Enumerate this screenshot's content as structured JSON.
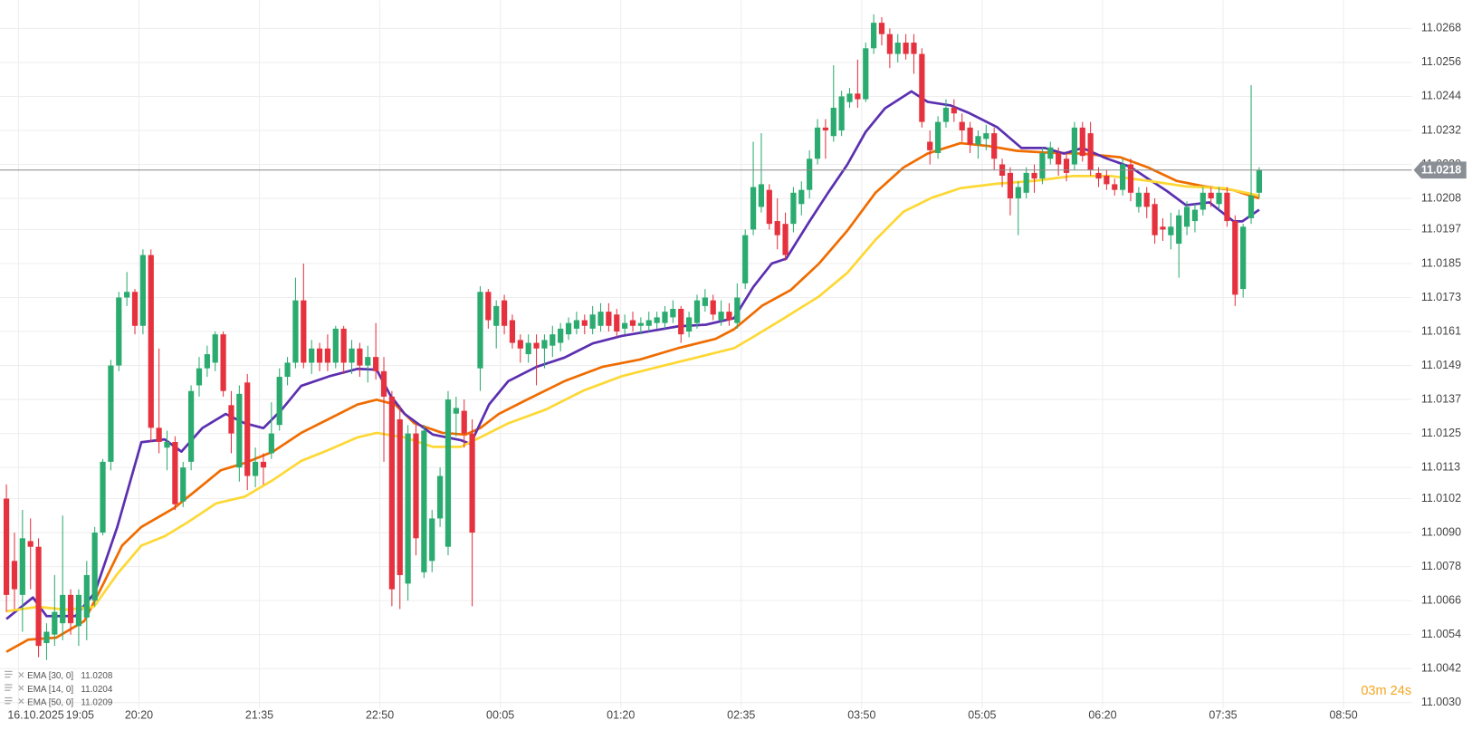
{
  "chart_data": {
    "type": "candlestick",
    "date_label": "16.10.2025",
    "up_color": "#2bab6f",
    "down_color": "#e5323e",
    "grid": true,
    "xlim": [
      -0.8,
      175
    ],
    "xticks": [
      {
        "value": 1.5,
        "label": "19:05"
      },
      {
        "value": 16.5,
        "label": "20:20"
      },
      {
        "value": 31.5,
        "label": "21:35"
      },
      {
        "value": 46.5,
        "label": "22:50"
      },
      {
        "value": 61.5,
        "label": "00:05"
      },
      {
        "value": 76.5,
        "label": "01:20"
      },
      {
        "value": 91.5,
        "label": "02:35"
      },
      {
        "value": 106.5,
        "label": "03:50"
      },
      {
        "value": 121.5,
        "label": "05:05"
      },
      {
        "value": 136.5,
        "label": "06:20"
      },
      {
        "value": 151.5,
        "label": "07:35"
      },
      {
        "value": 166.5,
        "label": "08:50"
      }
    ],
    "ylim": [
      11.0028,
      11.0278
    ],
    "yticks": [
      11.0268,
      11.0256,
      11.0244,
      11.0232,
      {
        "value": 11.022,
        "label": "11.0220"
      },
      11.0208,
      11.0197,
      11.0185,
      11.0173,
      11.0161,
      11.0149,
      11.0137,
      11.0125,
      11.0113,
      11.0102,
      {
        "value": 11.009,
        "label": "11.0090"
      },
      11.0078,
      11.0066,
      11.0054,
      11.0042,
      {
        "value": 11.003,
        "label": "11.0030"
      }
    ],
    "open": [
      11.0102,
      11.008,
      11.0068,
      11.0087,
      11.0085,
      11.0051,
      11.0054,
      11.0058,
      11.0068,
      11.0057,
      11.006,
      11.0066,
      11.009,
      11.0115,
      11.0149,
      11.0173,
      11.0175,
      11.0163,
      11.0188,
      11.0127,
      11.012,
      11.0122,
      11.0101,
      11.0115,
      11.0142,
      11.0148,
      11.015,
      11.016,
      11.0135,
      11.0113,
      11.0143,
      11.011,
      11.0115,
      11.0118,
      11.0128,
      11.0145,
      11.015,
      11.0172,
      11.015,
      11.0155,
      11.0155,
      11.015,
      11.0162,
      11.015,
      11.0155,
      11.0149,
      11.0152,
      11.0147,
      11.0138,
      11.013,
      11.0072,
      11.0125,
      11.0076,
      11.008,
      11.0095,
      11.0085,
      11.0132,
      11.0133,
      11.0125,
      11.0148,
      11.0175,
      11.0163,
      11.0172,
      11.0165,
      11.0158,
      11.0153,
      11.0157,
      11.0155,
      11.0156,
      11.0157,
      11.016,
      11.0162,
      11.0165,
      11.0162,
      11.0163,
      11.0168,
      11.0167,
      11.0162,
      11.0165,
      11.0163,
      11.0163,
      11.0164,
      11.0164,
      11.0166,
      11.0169,
      11.0161,
      11.0164,
      11.017,
      11.0172,
      11.0165,
      11.0168,
      11.0164,
      11.0178,
      11.0197,
      11.0205,
      11.0211,
      11.02,
      11.0199,
      11.0199,
      11.0206,
      11.0211,
      11.0222,
      11.0233,
      11.023,
      11.0232,
      11.0242,
      11.0245,
      11.0243,
      11.0261,
      11.027,
      11.0266,
      11.0259,
      11.0263,
      11.0263,
      11.0259,
      11.0228,
      11.0224,
      11.0235,
      11.024,
      11.0235,
      11.0233,
      11.0227,
      11.0229,
      11.0231,
      11.022,
      11.0217,
      11.0208,
      11.021,
      11.0217,
      11.0215,
      11.0222,
      11.0224,
      11.0222,
      11.022,
      11.0233,
      11.0231,
      11.0217,
      11.0216,
      11.0213,
      11.0211,
      11.022,
      11.0205,
      11.021,
      11.0206,
      11.0198,
      11.0195,
      11.0192,
      11.0198,
      11.02,
      11.0204,
      11.021,
      11.0206,
      11.021,
      11.02,
      11.0176,
      11.0201,
      11.021
    ],
    "high": [
      11.0107,
      11.009,
      11.0098,
      11.0095,
      11.0088,
      11.0058,
      11.0075,
      11.0096,
      11.007,
      11.007,
      11.008,
      11.0092,
      11.0116,
      11.0151,
      11.0175,
      11.0182,
      11.0176,
      11.019,
      11.019,
      11.0155,
      11.0126,
      11.0124,
      11.0115,
      11.0142,
      11.0152,
      11.0156,
      11.0161,
      11.0161,
      11.014,
      11.0142,
      11.0146,
      11.012,
      11.0118,
      11.0136,
      11.0148,
      11.0152,
      11.018,
      11.0185,
      11.0158,
      11.0157,
      11.016,
      11.0163,
      11.0163,
      11.0158,
      11.0157,
      11.0156,
      11.0164,
      11.0152,
      11.014,
      11.0135,
      11.0128,
      11.0128,
      11.0128,
      11.0098,
      11.0113,
      11.014,
      11.0138,
      11.0137,
      11.013,
      11.0177,
      11.0176,
      11.0172,
      11.0174,
      11.0167,
      11.016,
      11.016,
      11.016,
      11.016,
      11.0163,
      11.0164,
      11.0166,
      11.0168,
      11.0167,
      11.017,
      11.0171,
      11.0171,
      11.0169,
      11.0167,
      11.0168,
      11.0166,
      11.0168,
      11.0168,
      11.017,
      11.0172,
      11.017,
      11.0168,
      11.0174,
      11.0176,
      11.0174,
      11.0172,
      11.0171,
      11.0178,
      11.0197,
      11.0228,
      11.0231,
      11.0213,
      11.0208,
      11.0203,
      11.0212,
      11.0214,
      11.0225,
      11.0236,
      11.0236,
      11.0255,
      11.0246,
      11.0247,
      11.0257,
      11.0263,
      11.0273,
      11.0272,
      11.0268,
      11.0266,
      11.0266,
      11.0266,
      11.0261,
      11.0232,
      11.0237,
      11.0243,
      11.0243,
      11.0238,
      11.0235,
      11.0232,
      11.0234,
      11.0233,
      11.0222,
      11.0219,
      11.0214,
      11.0219,
      11.022,
      11.0226,
      11.0228,
      11.0226,
      11.0224,
      11.0235,
      11.0235,
      11.0235,
      11.0219,
      11.0218,
      11.0215,
      11.0222,
      11.0222,
      11.0212,
      11.0212,
      11.0208,
      11.0201,
      11.0203,
      11.0204,
      11.0207,
      11.0206,
      11.0212,
      11.0212,
      11.0212,
      11.0212,
      11.0202,
      11.0199,
      11.0248,
      11.0219
    ],
    "low": [
      11.0062,
      11.0063,
      11.0055,
      11.007,
      11.0046,
      11.0045,
      11.005,
      11.0052,
      11.0054,
      11.005,
      11.0052,
      11.0064,
      11.0089,
      11.0112,
      11.0147,
      11.017,
      11.016,
      11.016,
      11.0122,
      11.0118,
      11.0112,
      11.0098,
      11.0099,
      11.0112,
      11.0138,
      11.0145,
      11.0147,
      11.0138,
      11.0118,
      11.0108,
      11.0105,
      11.0106,
      11.0107,
      11.0116,
      11.0126,
      11.0142,
      11.0148,
      11.0148,
      11.0146,
      11.0147,
      11.0147,
      11.0148,
      11.0146,
      11.0146,
      11.0145,
      11.0143,
      11.0144,
      11.0115,
      11.0064,
      11.0063,
      11.0066,
      11.0082,
      11.0074,
      11.0076,
      11.0092,
      11.0082,
      11.0124,
      11.012,
      11.0064,
      11.014,
      11.0162,
      11.0155,
      11.016,
      11.0155,
      11.015,
      11.015,
      11.0142,
      11.0148,
      11.0152,
      11.0154,
      11.0158,
      11.016,
      11.016,
      11.016,
      11.0161,
      11.0161,
      11.0159,
      11.016,
      11.0161,
      11.016,
      11.0161,
      11.0162,
      11.0162,
      11.0164,
      11.0157,
      11.0159,
      11.0162,
      11.0168,
      11.0165,
      11.0163,
      11.0163,
      11.0162,
      11.0176,
      11.0195,
      11.0203,
      11.0197,
      11.019,
      11.0186,
      11.0196,
      11.0202,
      11.0208,
      11.022,
      11.0222,
      11.0228,
      11.023,
      11.024,
      11.024,
      11.0242,
      11.0259,
      11.0262,
      11.0254,
      11.0256,
      11.0257,
      11.0252,
      11.0233,
      11.022,
      11.0222,
      11.0233,
      11.0235,
      11.0228,
      11.0224,
      11.0222,
      11.0225,
      11.0218,
      11.0212,
      11.0202,
      11.0195,
      11.0208,
      11.021,
      11.0213,
      11.022,
      11.0216,
      11.0214,
      11.0218,
      11.0221,
      11.0216,
      11.0212,
      11.0211,
      11.0209,
      11.0209,
      11.0207,
      11.0203,
      11.0201,
      11.0192,
      11.0193,
      11.019,
      11.018,
      11.0195,
      11.0196,
      11.0202,
      11.0205,
      11.0204,
      11.0198,
      11.017,
      11.0173,
      11.0199,
      11.0208
    ],
    "close": [
      11.0068,
      11.007,
      11.0088,
      11.0085,
      11.005,
      11.0055,
      11.0062,
      11.0068,
      11.0058,
      11.0068,
      11.0075,
      11.009,
      11.0115,
      11.0149,
      11.0173,
      11.0175,
      11.0163,
      11.0188,
      11.0127,
      11.0122,
      11.0122,
      11.01,
      11.0113,
      11.014,
      11.0148,
      11.0153,
      11.016,
      11.014,
      11.0125,
      11.0139,
      11.011,
      11.0115,
      11.0113,
      11.0125,
      11.0145,
      11.015,
      11.0172,
      11.015,
      11.0155,
      11.015,
      11.015,
      11.0162,
      11.015,
      11.0155,
      11.0149,
      11.0152,
      11.0147,
      11.0138,
      11.007,
      11.0075,
      11.0125,
      11.0088,
      11.0126,
      11.0095,
      11.011,
      11.0137,
      11.0134,
      11.0125,
      11.009,
      11.0175,
      11.0165,
      11.017,
      11.0163,
      11.0157,
      11.0155,
      11.0157,
      11.0155,
      11.0158,
      11.016,
      11.0162,
      11.0164,
      11.0165,
      11.0163,
      11.0167,
      11.0168,
      11.0163,
      11.0161,
      11.0164,
      11.0163,
      11.0164,
      11.0165,
      11.0166,
      11.0168,
      11.0169,
      11.016,
      11.0166,
      11.0172,
      11.0173,
      11.0167,
      11.0168,
      11.0165,
      11.0173,
      11.0195,
      11.0212,
      11.0213,
      11.0199,
      11.0195,
      11.0188,
      11.021,
      11.0211,
      11.0222,
      11.0233,
      11.0232,
      11.024,
      11.0244,
      11.0245,
      11.0243,
      11.0261,
      11.027,
      11.0266,
      11.0259,
      11.0263,
      11.0259,
      11.0259,
      11.0235,
      11.0225,
      11.0235,
      11.024,
      11.0238,
      11.0232,
      11.0227,
      11.023,
      11.0231,
      11.0222,
      11.0216,
      11.0208,
      11.0212,
      11.0217,
      11.0215,
      11.0224,
      11.0226,
      11.022,
      11.0217,
      11.0233,
      11.0223,
      11.0218,
      11.0215,
      11.0213,
      11.0211,
      11.022,
      11.021,
      11.021,
      11.0205,
      11.0195,
      11.0197,
      11.0198,
      11.0202,
      11.0205,
      11.0204,
      11.021,
      11.0208,
      11.021,
      11.02,
      11.0174,
      11.0198,
      11.0209,
      11.0218
    ],
    "series": [
      {
        "name": "EMA [30, 0]",
        "color": "#ef6c00",
        "legend_value": 11.0208,
        "x": [
          0,
          2.7,
          6.2,
          9.7,
          12.1,
          14.4,
          16.8,
          20.9,
          23.8,
          26.7,
          29.7,
          33.2,
          36.7,
          40.2,
          43.7,
          46.1,
          48.4,
          50.8,
          54.3,
          57.2,
          59,
          61.3,
          64.8,
          69.5,
          74.2,
          78.9,
          83.6,
          88.3,
          90.6,
          94.1,
          97.7,
          101.2,
          104.7,
          108.2,
          111.7,
          114.7,
          118.8,
          122.3,
          125.8,
          129.3,
          134,
          138.7,
          142.2,
          145.7,
          149.2,
          152.8,
          156
        ],
        "values": [
          11.00479,
          11.00522,
          11.00529,
          11.00588,
          11.00721,
          11.00854,
          11.0092,
          11.00987,
          11.01053,
          11.0112,
          11.01146,
          11.01186,
          11.01252,
          11.01302,
          11.01352,
          11.01369,
          11.01352,
          11.01286,
          11.01252,
          11.01246,
          11.01269,
          11.01319,
          11.01369,
          11.01435,
          11.01485,
          11.01511,
          11.01551,
          11.01584,
          11.01618,
          11.01701,
          11.01757,
          11.0185,
          11.01966,
          11.02099,
          11.02189,
          11.02238,
          11.02275,
          11.02265,
          11.02248,
          11.02242,
          11.02238,
          11.02225,
          11.02189,
          11.02142,
          11.02122,
          11.02109,
          11.0208
        ]
      },
      {
        "name": "EMA [14, 0]",
        "color": "#5b2fb0",
        "legend_value": 11.0204,
        "x": [
          0,
          3.3,
          5,
          8.6,
          11,
          13.8,
          16.8,
          19.7,
          21.8,
          24.4,
          27.3,
          29.7,
          32,
          34.3,
          36.7,
          40.2,
          43.7,
          46.1,
          47.8,
          49.6,
          53.1,
          56.6,
          57.8,
          60.1,
          62.5,
          66,
          69.5,
          73,
          76.6,
          80.1,
          83.6,
          87.1,
          90.6,
          93,
          95.3,
          97.1,
          100,
          102.3,
          104.7,
          107,
          109.4,
          112.7,
          114.7,
          117.6,
          119.9,
          123.4,
          126.4,
          129.3,
          131.7,
          134,
          136.9,
          139.9,
          142.2,
          144.5,
          146.9,
          149.8,
          152.8,
          153.9,
          156
        ],
        "values": [
          11.00595,
          11.00671,
          11.00605,
          11.00605,
          11.00688,
          11.0092,
          11.01219,
          11.01229,
          11.01186,
          11.01269,
          11.01319,
          11.01286,
          11.01269,
          11.01335,
          11.01418,
          11.01452,
          11.01478,
          11.01475,
          11.01385,
          11.01319,
          11.01246,
          11.01226,
          11.01213,
          11.01352,
          11.01435,
          11.01485,
          11.01518,
          11.01568,
          11.01594,
          11.01611,
          11.01628,
          11.01634,
          11.01657,
          11.01767,
          11.0185,
          11.01867,
          11.01999,
          11.02099,
          11.02199,
          11.02315,
          11.02398,
          11.02458,
          11.02421,
          11.02408,
          11.02381,
          11.02331,
          11.02258,
          11.02258,
          11.02238,
          11.02258,
          11.02222,
          11.02192,
          11.02149,
          11.02106,
          11.02056,
          11.02066,
          11.01999,
          11.01999,
          11.0204
        ]
      },
      {
        "name": "EMA [50, 0]",
        "color": "#fdd835",
        "legend_value": 11.0209,
        "x": [
          0,
          3.9,
          7.4,
          10.9,
          13.8,
          16.8,
          19.7,
          22.6,
          26.1,
          29.7,
          33.2,
          36.7,
          40.2,
          43.7,
          46.1,
          49.6,
          53.1,
          56.6,
          59,
          62.5,
          67.2,
          71.9,
          76.6,
          81.2,
          85.9,
          90.6,
          93,
          96.5,
          101.2,
          104.7,
          108.2,
          111.7,
          115.2,
          118.8,
          123.4,
          128.1,
          132.8,
          137.5,
          142.2,
          146.9,
          151.6,
          156
        ],
        "values": [
          11.00622,
          11.00638,
          11.00628,
          11.00638,
          11.00754,
          11.00854,
          11.00887,
          11.00937,
          11.01003,
          11.01027,
          11.01086,
          11.01153,
          11.01193,
          11.01236,
          11.01252,
          11.01236,
          11.01203,
          11.01203,
          11.01236,
          11.01286,
          11.01335,
          11.01402,
          11.01452,
          11.01485,
          11.01518,
          11.01551,
          11.01591,
          11.01651,
          11.01734,
          11.01817,
          11.01933,
          11.02033,
          11.02082,
          11.02116,
          11.02132,
          11.02142,
          11.02159,
          11.02159,
          11.02142,
          11.02122,
          11.02116,
          11.0209
        ]
      }
    ],
    "last_price": 11.0218,
    "countdown": "03m 24s"
  }
}
